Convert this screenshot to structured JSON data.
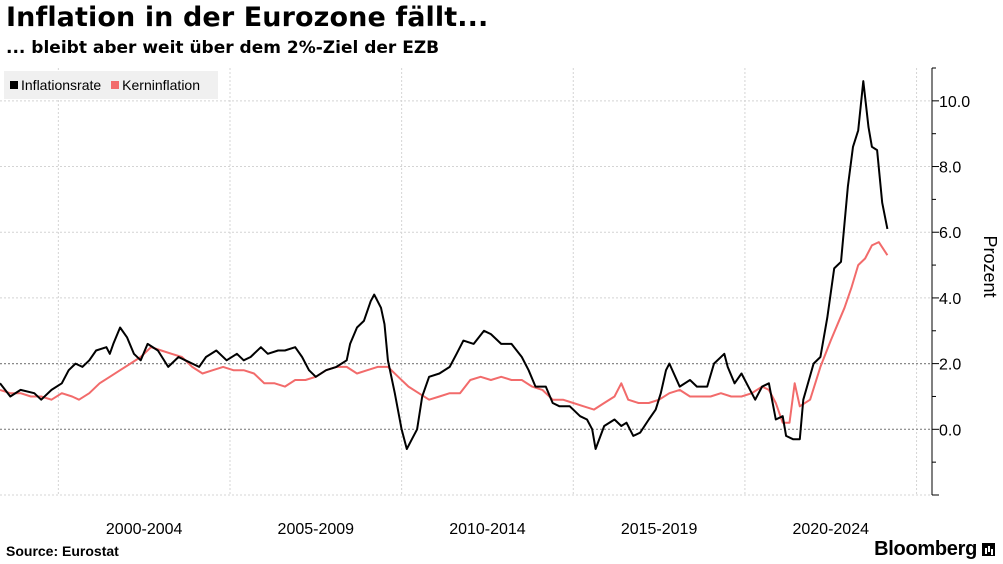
{
  "title": "Inflation in der Eurozone fällt...",
  "subtitle": "... bleibt aber weit über dem 2%-Ziel der EZB",
  "source": "Source: Eurostat",
  "brand": "Bloomberg",
  "chart_data": {
    "type": "line",
    "title": "Inflation in der Eurozone fällt...",
    "subtitle": "... bleibt aber weit über dem 2%-Ziel der EZB",
    "ylabel": "Prozent",
    "xlabel": "",
    "xlim": [
      1997.7,
      2024.85
    ],
    "ylim": [
      -2,
      11
    ],
    "yticks": [
      0,
      2,
      4,
      6,
      8,
      10
    ],
    "ytick_labels": [
      "0.0",
      "2.0",
      "4.0",
      "6.0",
      "8.0",
      "10.0"
    ],
    "xtick_positions": [
      1999.4,
      2004.4,
      2009.4,
      2014.4,
      2019.4,
      2024.4
    ],
    "x_category_labels": [
      {
        "label": "2000-2004",
        "center": 2001.9
      },
      {
        "label": "2005-2009",
        "center": 2006.9
      },
      {
        "label": "2010-2014",
        "center": 2011.9
      },
      {
        "label": "2015-2019",
        "center": 2016.9
      },
      {
        "label": "2020-2024",
        "center": 2021.9
      }
    ],
    "reference_lines": [
      0,
      2
    ],
    "grid": true,
    "legend_position": "top-left",
    "series": [
      {
        "name": "Inflationsrate",
        "color": "#000000",
        "points": [
          [
            1997.7,
            1.4
          ],
          [
            1998.0,
            1.0
          ],
          [
            1998.3,
            1.2
          ],
          [
            1998.7,
            1.1
          ],
          [
            1998.9,
            0.9
          ],
          [
            1999.2,
            1.2
          ],
          [
            1999.5,
            1.4
          ],
          [
            1999.7,
            1.8
          ],
          [
            1999.9,
            2.0
          ],
          [
            2000.1,
            1.9
          ],
          [
            2000.3,
            2.1
          ],
          [
            2000.5,
            2.4
          ],
          [
            2000.8,
            2.5
          ],
          [
            2000.9,
            2.3
          ],
          [
            2001.0,
            2.6
          ],
          [
            2001.2,
            3.1
          ],
          [
            2001.4,
            2.8
          ],
          [
            2001.6,
            2.3
          ],
          [
            2001.8,
            2.1
          ],
          [
            2002.0,
            2.6
          ],
          [
            2002.3,
            2.4
          ],
          [
            2002.6,
            1.9
          ],
          [
            2002.9,
            2.2
          ],
          [
            2003.1,
            2.1
          ],
          [
            2003.5,
            1.9
          ],
          [
            2003.7,
            2.2
          ],
          [
            2004.0,
            2.4
          ],
          [
            2004.3,
            2.1
          ],
          [
            2004.6,
            2.3
          ],
          [
            2004.8,
            2.1
          ],
          [
            2005.0,
            2.2
          ],
          [
            2005.3,
            2.5
          ],
          [
            2005.5,
            2.3
          ],
          [
            2005.8,
            2.4
          ],
          [
            2006.0,
            2.4
          ],
          [
            2006.3,
            2.5
          ],
          [
            2006.5,
            2.2
          ],
          [
            2006.7,
            1.8
          ],
          [
            2006.9,
            1.6
          ],
          [
            2007.2,
            1.8
          ],
          [
            2007.5,
            1.9
          ],
          [
            2007.8,
            2.1
          ],
          [
            2007.9,
            2.6
          ],
          [
            2008.1,
            3.1
          ],
          [
            2008.3,
            3.3
          ],
          [
            2008.5,
            3.9
          ],
          [
            2008.6,
            4.1
          ],
          [
            2008.8,
            3.7
          ],
          [
            2008.9,
            3.2
          ],
          [
            2009.0,
            2.1
          ],
          [
            2009.2,
            1.1
          ],
          [
            2009.4,
            0.0
          ],
          [
            2009.55,
            -0.6
          ],
          [
            2009.7,
            -0.3
          ],
          [
            2009.85,
            0.0
          ],
          [
            2010.0,
            1.0
          ],
          [
            2010.2,
            1.6
          ],
          [
            2010.5,
            1.7
          ],
          [
            2010.8,
            1.9
          ],
          [
            2011.0,
            2.3
          ],
          [
            2011.2,
            2.7
          ],
          [
            2011.5,
            2.6
          ],
          [
            2011.8,
            3.0
          ],
          [
            2012.0,
            2.9
          ],
          [
            2012.3,
            2.6
          ],
          [
            2012.6,
            2.6
          ],
          [
            2012.9,
            2.2
          ],
          [
            2013.1,
            1.8
          ],
          [
            2013.3,
            1.3
          ],
          [
            2013.6,
            1.3
          ],
          [
            2013.8,
            0.8
          ],
          [
            2014.0,
            0.7
          ],
          [
            2014.3,
            0.7
          ],
          [
            2014.6,
            0.4
          ],
          [
            2014.8,
            0.3
          ],
          [
            2014.95,
            0.0
          ],
          [
            2015.05,
            -0.6
          ],
          [
            2015.3,
            0.1
          ],
          [
            2015.6,
            0.3
          ],
          [
            2015.8,
            0.1
          ],
          [
            2015.95,
            0.2
          ],
          [
            2016.15,
            -0.2
          ],
          [
            2016.35,
            -0.1
          ],
          [
            2016.6,
            0.3
          ],
          [
            2016.8,
            0.6
          ],
          [
            2016.95,
            1.1
          ],
          [
            2017.1,
            1.8
          ],
          [
            2017.2,
            2.0
          ],
          [
            2017.5,
            1.3
          ],
          [
            2017.8,
            1.5
          ],
          [
            2018.0,
            1.3
          ],
          [
            2018.3,
            1.3
          ],
          [
            2018.5,
            2.0
          ],
          [
            2018.8,
            2.3
          ],
          [
            2018.9,
            1.9
          ],
          [
            2019.1,
            1.4
          ],
          [
            2019.3,
            1.7
          ],
          [
            2019.5,
            1.3
          ],
          [
            2019.7,
            0.9
          ],
          [
            2019.9,
            1.3
          ],
          [
            2020.1,
            1.4
          ],
          [
            2020.3,
            0.3
          ],
          [
            2020.5,
            0.4
          ],
          [
            2020.6,
            -0.2
          ],
          [
            2020.8,
            -0.3
          ],
          [
            2021.0,
            -0.3
          ],
          [
            2021.1,
            0.9
          ],
          [
            2021.4,
            2.0
          ],
          [
            2021.6,
            2.2
          ],
          [
            2021.8,
            3.4
          ],
          [
            2022.0,
            4.9
          ],
          [
            2022.2,
            5.1
          ],
          [
            2022.4,
            7.4
          ],
          [
            2022.55,
            8.6
          ],
          [
            2022.7,
            9.1
          ],
          [
            2022.85,
            10.6
          ],
          [
            2023.0,
            9.2
          ],
          [
            2023.1,
            8.6
          ],
          [
            2023.25,
            8.5
          ],
          [
            2023.4,
            6.9
          ],
          [
            2023.55,
            6.1
          ]
        ]
      },
      {
        "name": "Kerninflation",
        "color": "#f26b6b",
        "points": [
          [
            1997.7,
            1.2
          ],
          [
            1998.0,
            1.1
          ],
          [
            1998.3,
            1.1
          ],
          [
            1998.6,
            1.0
          ],
          [
            1998.9,
            1.0
          ],
          [
            1999.2,
            0.9
          ],
          [
            1999.5,
            1.1
          ],
          [
            1999.8,
            1.0
          ],
          [
            2000.0,
            0.9
          ],
          [
            2000.3,
            1.1
          ],
          [
            2000.6,
            1.4
          ],
          [
            2000.9,
            1.6
          ],
          [
            2001.2,
            1.8
          ],
          [
            2001.5,
            2.0
          ],
          [
            2001.8,
            2.2
          ],
          [
            2002.1,
            2.5
          ],
          [
            2002.4,
            2.4
          ],
          [
            2002.7,
            2.3
          ],
          [
            2003.0,
            2.2
          ],
          [
            2003.3,
            1.9
          ],
          [
            2003.6,
            1.7
          ],
          [
            2003.9,
            1.8
          ],
          [
            2004.2,
            1.9
          ],
          [
            2004.5,
            1.8
          ],
          [
            2004.8,
            1.8
          ],
          [
            2005.1,
            1.7
          ],
          [
            2005.4,
            1.4
          ],
          [
            2005.7,
            1.4
          ],
          [
            2006.0,
            1.3
          ],
          [
            2006.3,
            1.5
          ],
          [
            2006.6,
            1.5
          ],
          [
            2006.9,
            1.6
          ],
          [
            2007.2,
            1.8
          ],
          [
            2007.5,
            1.9
          ],
          [
            2007.8,
            1.9
          ],
          [
            2008.1,
            1.7
          ],
          [
            2008.4,
            1.8
          ],
          [
            2008.7,
            1.9
          ],
          [
            2009.0,
            1.9
          ],
          [
            2009.3,
            1.6
          ],
          [
            2009.6,
            1.3
          ],
          [
            2009.9,
            1.1
          ],
          [
            2010.2,
            0.9
          ],
          [
            2010.5,
            1.0
          ],
          [
            2010.8,
            1.1
          ],
          [
            2011.1,
            1.1
          ],
          [
            2011.4,
            1.5
          ],
          [
            2011.7,
            1.6
          ],
          [
            2012.0,
            1.5
          ],
          [
            2012.3,
            1.6
          ],
          [
            2012.6,
            1.5
          ],
          [
            2012.9,
            1.5
          ],
          [
            2013.2,
            1.3
          ],
          [
            2013.5,
            1.2
          ],
          [
            2013.8,
            0.9
          ],
          [
            2014.1,
            0.9
          ],
          [
            2014.4,
            0.8
          ],
          [
            2014.7,
            0.7
          ],
          [
            2015.0,
            0.6
          ],
          [
            2015.3,
            0.8
          ],
          [
            2015.6,
            1.0
          ],
          [
            2015.8,
            1.4
          ],
          [
            2016.0,
            0.9
          ],
          [
            2016.3,
            0.8
          ],
          [
            2016.6,
            0.8
          ],
          [
            2016.9,
            0.9
          ],
          [
            2017.2,
            1.1
          ],
          [
            2017.5,
            1.2
          ],
          [
            2017.8,
            1.0
          ],
          [
            2018.1,
            1.0
          ],
          [
            2018.4,
            1.0
          ],
          [
            2018.7,
            1.1
          ],
          [
            2019.0,
            1.0
          ],
          [
            2019.3,
            1.0
          ],
          [
            2019.6,
            1.1
          ],
          [
            2019.9,
            1.3
          ],
          [
            2020.1,
            1.2
          ],
          [
            2020.3,
            0.8
          ],
          [
            2020.5,
            0.2
          ],
          [
            2020.7,
            0.2
          ],
          [
            2020.85,
            1.4
          ],
          [
            2021.0,
            0.7
          ],
          [
            2021.3,
            0.9
          ],
          [
            2021.6,
            1.9
          ],
          [
            2021.9,
            2.7
          ],
          [
            2022.1,
            3.2
          ],
          [
            2022.3,
            3.7
          ],
          [
            2022.5,
            4.3
          ],
          [
            2022.7,
            5.0
          ],
          [
            2022.9,
            5.2
          ],
          [
            2023.1,
            5.6
          ],
          [
            2023.3,
            5.7
          ],
          [
            2023.55,
            5.3
          ]
        ]
      }
    ]
  }
}
